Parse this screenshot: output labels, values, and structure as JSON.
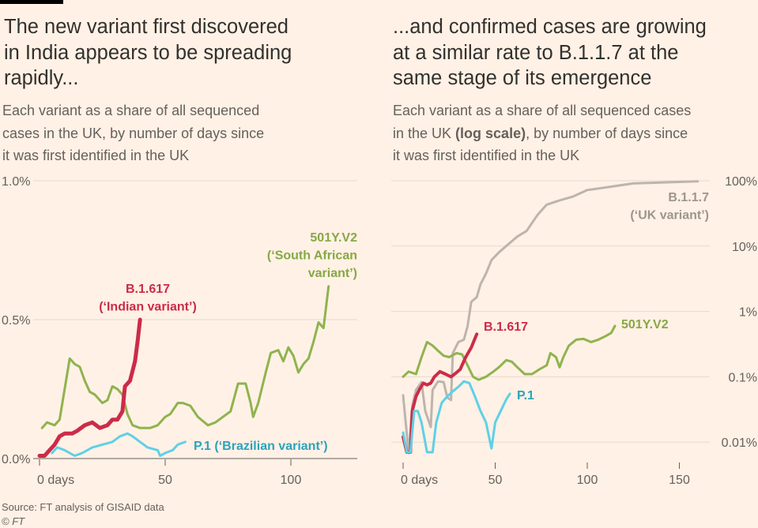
{
  "left": {
    "title": [
      "The new variant first discovered",
      "in India appears to be spreading",
      "rapidly..."
    ],
    "subtitle": [
      "Each variant as a share of all sequenced",
      "cases in the UK, by number of days since",
      "it was first identified in the UK"
    ]
  },
  "right": {
    "title": [
      "...and confirmed cases are growing",
      "at a similar rate to B.1.1.7 at the",
      "same stage of its emergence"
    ],
    "subtitle_parts": [
      "Each variant as a share of all sequenced cases",
      "in the UK ",
      "(log scale)",
      ", by number of days since",
      "it was first identified in the UK"
    ]
  },
  "source": "Source: FT analysis of GISAID data",
  "copyright": "© FT",
  "colors": {
    "background": "#fff1e5",
    "B.1.617": "#cc2b49",
    "501Y.V2": "#8fb34e",
    "P.1": "#5fd0e6",
    "B.1.1.7": "#bdb4ad"
  },
  "chart_data": [
    {
      "type": "line",
      "xlabel": "",
      "ylabel": "",
      "xlim": [
        -3,
        128
      ],
      "ylim": [
        0,
        1.0
      ],
      "x_ticks": [
        "0 days",
        "50",
        "100"
      ],
      "x_tick_values": [
        0,
        50,
        100
      ],
      "y_ticks": [
        "0.0%",
        "0.5%",
        "1.0%"
      ],
      "y_tick_values": [
        0,
        0.5,
        1.0
      ],
      "grid": true,
      "scale": "linear",
      "labels": {
        "B.1.617": [
          "B.1.617",
          "(‘Indian variant’)"
        ],
        "501Y.V2": [
          "501Y.V2",
          "(‘South African",
          "variant’)"
        ],
        "P.1": [
          "P.1 (‘Brazilian variant’)"
        ]
      },
      "series": [
        {
          "name": "501Y.V2",
          "points": [
            [
              1,
              0.11
            ],
            [
              3,
              0.13
            ],
            [
              6,
              0.12
            ],
            [
              8,
              0.14
            ],
            [
              10,
              0.25
            ],
            [
              12,
              0.36
            ],
            [
              14,
              0.34
            ],
            [
              16,
              0.33
            ],
            [
              18,
              0.28
            ],
            [
              20,
              0.24
            ],
            [
              22,
              0.23
            ],
            [
              25,
              0.2
            ],
            [
              27,
              0.21
            ],
            [
              29,
              0.26
            ],
            [
              31,
              0.25
            ],
            [
              33,
              0.23
            ],
            [
              35,
              0.16
            ],
            [
              37,
              0.12
            ],
            [
              40,
              0.11
            ],
            [
              44,
              0.11
            ],
            [
              47,
              0.12
            ],
            [
              50,
              0.15
            ],
            [
              52,
              0.16
            ],
            [
              55,
              0.2
            ],
            [
              57,
              0.2
            ],
            [
              60,
              0.19
            ],
            [
              63,
              0.15
            ],
            [
              67,
              0.12
            ],
            [
              70,
              0.13
            ],
            [
              73,
              0.15
            ],
            [
              76,
              0.17
            ],
            [
              79,
              0.27
            ],
            [
              82,
              0.27
            ],
            [
              84,
              0.2
            ],
            [
              85,
              0.15
            ],
            [
              87,
              0.2
            ],
            [
              90,
              0.31
            ],
            [
              92,
              0.38
            ],
            [
              95,
              0.39
            ],
            [
              97,
              0.35
            ],
            [
              99,
              0.4
            ],
            [
              101,
              0.37
            ],
            [
              103,
              0.31
            ],
            [
              105,
              0.34
            ],
            [
              107,
              0.36
            ],
            [
              109,
              0.42
            ],
            [
              111,
              0.49
            ],
            [
              113,
              0.47
            ],
            [
              115,
              0.62
            ]
          ]
        },
        {
          "name": "B.1.617",
          "points": [
            [
              0,
              0.01
            ],
            [
              2,
              0.01
            ],
            [
              4,
              0.03
            ],
            [
              6,
              0.05
            ],
            [
              8,
              0.08
            ],
            [
              10,
              0.09
            ],
            [
              13,
              0.09
            ],
            [
              15,
              0.1
            ],
            [
              18,
              0.12
            ],
            [
              21,
              0.13
            ],
            [
              24,
              0.11
            ],
            [
              27,
              0.12
            ],
            [
              29,
              0.14
            ],
            [
              31,
              0.14
            ],
            [
              33,
              0.17
            ],
            [
              34,
              0.26
            ],
            [
              36,
              0.28
            ],
            [
              38,
              0.35
            ],
            [
              39,
              0.42
            ],
            [
              40,
              0.5
            ]
          ]
        },
        {
          "name": "P.1",
          "points": [
            [
              5,
              0.02
            ],
            [
              7,
              0.04
            ],
            [
              10,
              0.03
            ],
            [
              14,
              0.01
            ],
            [
              17,
              0.02
            ],
            [
              21,
              0.04
            ],
            [
              25,
              0.05
            ],
            [
              29,
              0.06
            ],
            [
              32,
              0.08
            ],
            [
              35,
              0.09
            ],
            [
              37,
              0.08
            ],
            [
              40,
              0.06
            ],
            [
              43,
              0.04
            ],
            [
              47,
              0.03
            ],
            [
              48,
              0.01
            ],
            [
              50,
              0.02
            ],
            [
              53,
              0.03
            ],
            [
              55,
              0.05
            ],
            [
              58,
              0.06
            ]
          ]
        }
      ]
    },
    {
      "type": "line",
      "xlabel": "",
      "ylabel": "",
      "xlim": [
        -6,
        168
      ],
      "ylim": [
        0.005,
        100
      ],
      "x_ticks": [
        "0 days",
        "50",
        "100",
        "150"
      ],
      "x_tick_values": [
        0,
        50,
        100,
        150
      ],
      "y_ticks": [
        "0.01%",
        "0.1%",
        "1%",
        "10%",
        "100%"
      ],
      "y_tick_values": [
        0.01,
        0.1,
        1,
        10,
        100
      ],
      "grid": true,
      "scale": "log",
      "labels": {
        "B.1.1.7": [
          "B.1.1.7",
          "(‘UK variant’)"
        ],
        "B.1.617": [
          "B.1.617"
        ],
        "501Y.V2": [
          "501Y.V2"
        ],
        "P.1": [
          "P.1"
        ]
      },
      "series": [
        {
          "name": "B.1.1.7",
          "points": [
            [
              0,
              0.052
            ],
            [
              3,
              0.0068
            ],
            [
              5,
              0.036
            ],
            [
              7,
              0.063
            ],
            [
              10,
              0.083
            ],
            [
              12,
              0.03
            ],
            [
              15,
              0.017
            ],
            [
              16,
              0.063
            ],
            [
              19,
              0.085
            ],
            [
              22,
              0.083
            ],
            [
              24,
              0.048
            ],
            [
              26,
              0.044
            ],
            [
              27,
              0.23
            ],
            [
              30,
              0.34
            ],
            [
              33,
              0.37
            ],
            [
              35,
              0.59
            ],
            [
              37,
              1.4
            ],
            [
              40,
              1.66
            ],
            [
              42,
              2.6
            ],
            [
              45,
              3.8
            ],
            [
              48,
              6.1
            ],
            [
              52,
              8
            ],
            [
              57,
              10.6
            ],
            [
              62,
              14
            ],
            [
              67,
              17
            ],
            [
              73,
              30
            ],
            [
              78,
              43
            ],
            [
              85,
              50
            ],
            [
              92,
              57
            ],
            [
              100,
              72
            ],
            [
              110,
              79
            ],
            [
              125,
              91
            ],
            [
              160,
              98
            ]
          ]
        },
        {
          "name": "501Y.V2",
          "points": [
            [
              0,
              0.1
            ],
            [
              3,
              0.12
            ],
            [
              7,
              0.11
            ],
            [
              10,
              0.2
            ],
            [
              13,
              0.34
            ],
            [
              16,
              0.3
            ],
            [
              19,
              0.25
            ],
            [
              22,
              0.21
            ],
            [
              25,
              0.2
            ],
            [
              29,
              0.23
            ],
            [
              32,
              0.22
            ],
            [
              35,
              0.15
            ],
            [
              38,
              0.1
            ],
            [
              41,
              0.09
            ],
            [
              45,
              0.1
            ],
            [
              49,
              0.12
            ],
            [
              52,
              0.14
            ],
            [
              56,
              0.18
            ],
            [
              59,
              0.17
            ],
            [
              62,
              0.14
            ],
            [
              66,
              0.11
            ],
            [
              70,
              0.11
            ],
            [
              74,
              0.13
            ],
            [
              78,
              0.15
            ],
            [
              80,
              0.23
            ],
            [
              83,
              0.2
            ],
            [
              85,
              0.14
            ],
            [
              87,
              0.2
            ],
            [
              90,
              0.3
            ],
            [
              94,
              0.37
            ],
            [
              98,
              0.38
            ],
            [
              102,
              0.34
            ],
            [
              106,
              0.37
            ],
            [
              110,
              0.42
            ],
            [
              113,
              0.47
            ],
            [
              115,
              0.6
            ]
          ]
        },
        {
          "name": "B.1.617",
          "points": [
            [
              0,
              0.012
            ],
            [
              2,
              0.007
            ],
            [
              4,
              0.007
            ],
            [
              5,
              0.03
            ],
            [
              7,
              0.05
            ],
            [
              9,
              0.065
            ],
            [
              11,
              0.08
            ],
            [
              13,
              0.075
            ],
            [
              15,
              0.08
            ],
            [
              17,
              0.1
            ],
            [
              20,
              0.12
            ],
            [
              23,
              0.11
            ],
            [
              26,
              0.1
            ],
            [
              28,
              0.11
            ],
            [
              31,
              0.13
            ],
            [
              34,
              0.2
            ],
            [
              37,
              0.28
            ],
            [
              40,
              0.45
            ]
          ]
        },
        {
          "name": "P.1",
          "points": [
            [
              0,
              0.014
            ],
            [
              2,
              0.007
            ],
            [
              4,
              0.007
            ],
            [
              6,
              0.03
            ],
            [
              8,
              0.03
            ],
            [
              10,
              0.02
            ],
            [
              13,
              0.007
            ],
            [
              16,
              0.007
            ],
            [
              18,
              0.02
            ],
            [
              21,
              0.04
            ],
            [
              24,
              0.05
            ],
            [
              27,
              0.06
            ],
            [
              30,
              0.07
            ],
            [
              33,
              0.085
            ],
            [
              36,
              0.08
            ],
            [
              39,
              0.05
            ],
            [
              42,
              0.03
            ],
            [
              45,
              0.02
            ],
            [
              48,
              0.008
            ],
            [
              50,
              0.02
            ],
            [
              53,
              0.03
            ],
            [
              56,
              0.045
            ],
            [
              58,
              0.055
            ]
          ]
        }
      ]
    }
  ]
}
